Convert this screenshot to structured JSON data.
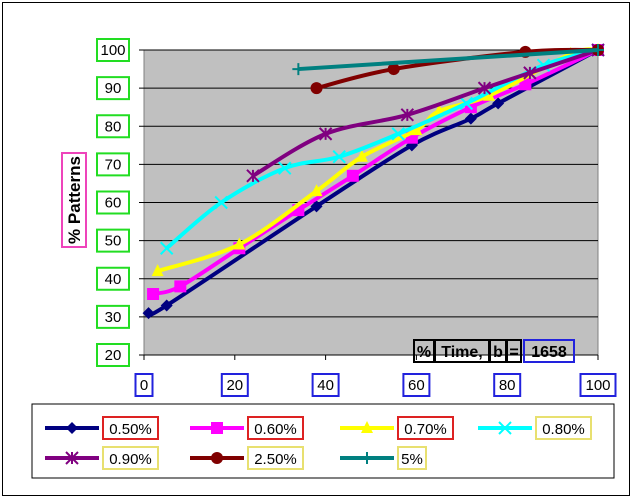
{
  "chart_data": {
    "type": "line",
    "title": "",
    "ylabel": "% Patterns",
    "xlabel_parts": [
      "%",
      "Time,",
      "b",
      "=",
      "1658"
    ],
    "xlim": [
      0,
      100
    ],
    "ylim": [
      20,
      100
    ],
    "x_ticks": [
      "0",
      "20",
      "40",
      "60",
      "80",
      "100"
    ],
    "y_ticks": [
      "20",
      "30",
      "40",
      "50",
      "60",
      "70",
      "80",
      "90",
      "100"
    ],
    "grid": true,
    "legend_position": "bottom",
    "series": [
      {
        "name": "0.50%",
        "color": "#000080",
        "marker": "diamond",
        "points": [
          [
            1,
            31
          ],
          [
            5,
            33
          ],
          [
            38,
            59
          ],
          [
            59,
            75
          ],
          [
            72,
            82
          ],
          [
            78,
            86
          ],
          [
            100,
            100
          ]
        ]
      },
      {
        "name": "0.60%",
        "color": "#ff00ff",
        "marker": "square",
        "points": [
          [
            2,
            36
          ],
          [
            8,
            38
          ],
          [
            21,
            48
          ],
          [
            34,
            58
          ],
          [
            46,
            67
          ],
          [
            59,
            77
          ],
          [
            72,
            85
          ],
          [
            84,
            91
          ],
          [
            100,
            100
          ]
        ]
      },
      {
        "name": "0.70%",
        "color": "#ffff00",
        "marker": "triangle",
        "points": [
          [
            3,
            42
          ],
          [
            21,
            49
          ],
          [
            38,
            63
          ],
          [
            48,
            72
          ],
          [
            60,
            79
          ],
          [
            65,
            84
          ],
          [
            76,
            88
          ],
          [
            94,
            99
          ],
          [
            100,
            100
          ]
        ]
      },
      {
        "name": "0.80%",
        "color": "#00ffff",
        "marker": "x",
        "points": [
          [
            5,
            48
          ],
          [
            17,
            60
          ],
          [
            31,
            69
          ],
          [
            43,
            72
          ],
          [
            56,
            78
          ],
          [
            71,
            86
          ],
          [
            88,
            96
          ],
          [
            100,
            100
          ]
        ]
      },
      {
        "name": "0.90%",
        "color": "#800080",
        "marker": "star",
        "points": [
          [
            24,
            67
          ],
          [
            40,
            78
          ],
          [
            58,
            83
          ],
          [
            75,
            90
          ],
          [
            85,
            94
          ],
          [
            100,
            100
          ]
        ]
      },
      {
        "name": "2.50%",
        "color": "#800000",
        "marker": "circle",
        "points": [
          [
            38,
            90
          ],
          [
            55,
            95
          ],
          [
            84,
            99.5
          ],
          [
            100,
            100
          ]
        ]
      },
      {
        "name": "5%",
        "color": "#008080",
        "marker": "plus",
        "points": [
          [
            34,
            95
          ],
          [
            100,
            100
          ]
        ]
      }
    ]
  }
}
